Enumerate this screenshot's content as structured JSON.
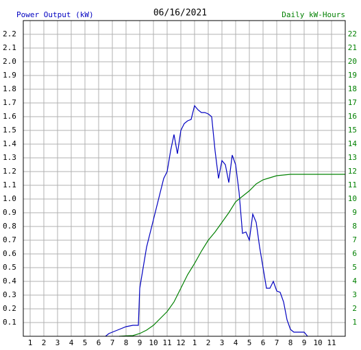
{
  "chart_data": {
    "type": "line",
    "title": "06/16/2021",
    "ylabel": "Power Output (kW)",
    "y2label": "Daily kW-Hours",
    "grid": true,
    "xlim": [
      0.5,
      24
    ],
    "xticks": [
      1,
      2,
      3,
      4,
      5,
      6,
      7,
      8,
      9,
      10,
      11,
      12,
      {
        "value": 13,
        "label": "1"
      },
      {
        "value": 14,
        "label": "2"
      },
      {
        "value": 15,
        "label": "3"
      },
      {
        "value": 16,
        "label": "4"
      },
      {
        "value": 17,
        "label": "5"
      },
      {
        "value": 18,
        "label": "6"
      },
      {
        "value": 19,
        "label": "7"
      },
      {
        "value": 20,
        "label": "8"
      },
      {
        "value": 21,
        "label": "9"
      },
      {
        "value": 22,
        "label": "10"
      },
      {
        "value": 23,
        "label": "11"
      }
    ],
    "ylim": [
      0,
      2.3
    ],
    "yticks": [
      0.1,
      0.2,
      0.3,
      0.4,
      0.5,
      0.6,
      0.7,
      0.8,
      0.9,
      {
        "value": 1,
        "label": "1.0"
      },
      1.1,
      1.2,
      1.3,
      1.4,
      1.5,
      1.6,
      1.7,
      1.8,
      1.9,
      {
        "value": 2,
        "label": "2.0"
      },
      2.1,
      2.2
    ],
    "y2lim": [
      0,
      23
    ],
    "y2ticks": [
      1,
      2,
      3,
      4,
      5,
      6,
      7,
      8,
      9,
      10,
      11,
      12,
      13,
      14,
      15,
      16,
      17,
      18,
      19,
      20,
      21,
      22
    ],
    "series": [
      {
        "name": "Power Output (kW)",
        "color": "#0000c0",
        "x": [
          6.5,
          6.75,
          7,
          7.5,
          8,
          8.5,
          8.9,
          9,
          9.25,
          9.5,
          9.75,
          10,
          10.25,
          10.5,
          10.75,
          11,
          11.25,
          11.5,
          11.75,
          12,
          12.25,
          12.5,
          12.75,
          13,
          13.25,
          13.5,
          13.75,
          14,
          14.25,
          14.5,
          14.75,
          15,
          15.25,
          15.5,
          15.75,
          16,
          16.25,
          16.5,
          16.75,
          17,
          17.25,
          17.5,
          17.75,
          18,
          18.25,
          18.5,
          18.75,
          19,
          19.25,
          19.5,
          19.75,
          20,
          20.25,
          20.5,
          21,
          21.25
        ],
        "values": [
          0,
          0.02,
          0.03,
          0.05,
          0.07,
          0.08,
          0.08,
          0.35,
          0.5,
          0.65,
          0.75,
          0.85,
          0.95,
          1.05,
          1.15,
          1.2,
          1.35,
          1.47,
          1.33,
          1.5,
          1.55,
          1.57,
          1.58,
          1.68,
          1.65,
          1.63,
          1.63,
          1.62,
          1.6,
          1.35,
          1.15,
          1.28,
          1.25,
          1.12,
          1.32,
          1.25,
          1.05,
          0.75,
          0.76,
          0.7,
          0.89,
          0.83,
          0.65,
          0.5,
          0.35,
          0.35,
          0.4,
          0.33,
          0.32,
          0.25,
          0.12,
          0.05,
          0.03,
          0.03,
          0.03,
          0
        ]
      },
      {
        "name": "Daily kW-Hours",
        "color": "#008000",
        "axis": "y2",
        "x": [
          7.5,
          8,
          8.5,
          9,
          9.5,
          10,
          10.5,
          11,
          11.5,
          12,
          12.5,
          13,
          13.5,
          14,
          14.5,
          15,
          15.5,
          16,
          16.5,
          17,
          17.5,
          18,
          18.5,
          19,
          19.5,
          20,
          24
        ],
        "values": [
          0,
          0.03,
          0.05,
          0.2,
          0.45,
          0.8,
          1.3,
          1.8,
          2.5,
          3.5,
          4.5,
          5.3,
          6.2,
          7,
          7.6,
          8.3,
          9,
          9.8,
          10.2,
          10.6,
          11.1,
          11.4,
          11.55,
          11.7,
          11.75,
          11.8,
          11.8
        ]
      }
    ]
  }
}
